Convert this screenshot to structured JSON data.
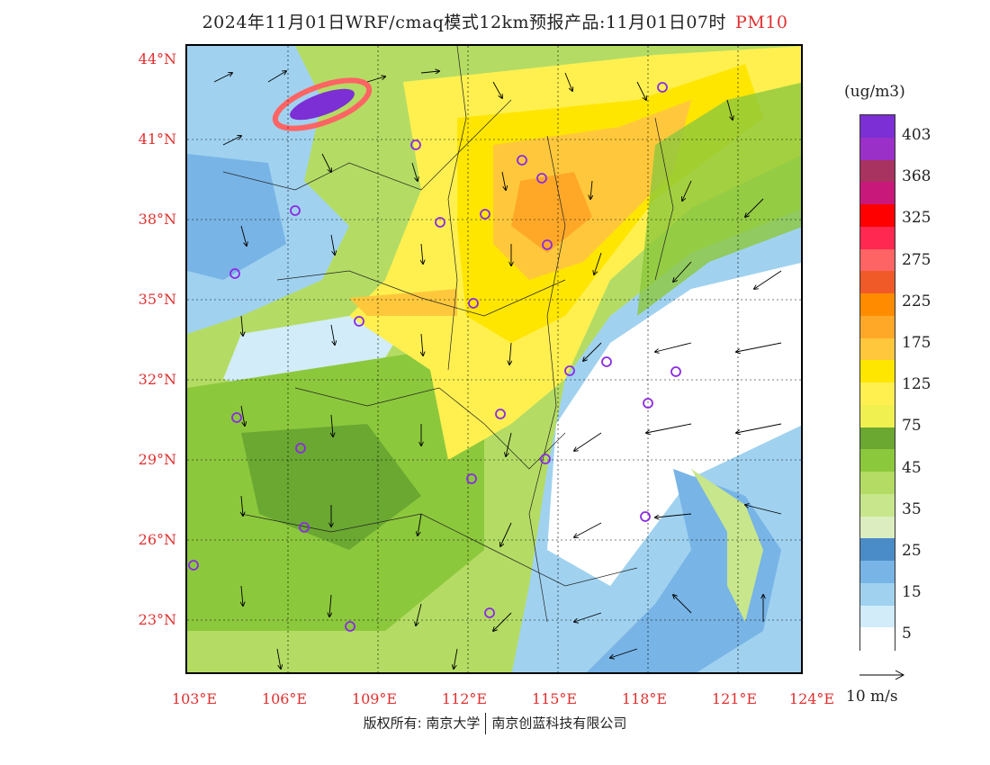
{
  "title": {
    "text": "2024年11月01日WRF/cmaq模式12km预报产品:11月01日07时",
    "product": "PM10"
  },
  "axes": {
    "lat_labels": [
      "44°N",
      "41°N",
      "38°N",
      "35°N",
      "32°N",
      "29°N",
      "26°N",
      "23°N"
    ],
    "lon_labels": [
      "103°E",
      "106°E",
      "109°E",
      "112°E",
      "115°E",
      "118°E",
      "121°E",
      "124°E"
    ]
  },
  "legend": {
    "unit": "(ug/m3)",
    "labels": [
      "403",
      "368",
      "325",
      "275",
      "225",
      "175",
      "125",
      "75",
      "45",
      "35",
      "25",
      "15",
      "5"
    ],
    "colors": [
      "#7b2fd4",
      "#9b30c8",
      "#a83260",
      "#c8187a",
      "#ff0000",
      "#ff2850",
      "#ff6464",
      "#f05a28",
      "#ff8c00",
      "#ffa828",
      "#ffc83c",
      "#ffe600",
      "#fff050",
      "#f0f050",
      "#6aa832",
      "#8cc83c",
      "#b4dc64",
      "#c8e68c",
      "#dceec0",
      "#4a8cc8",
      "#78b4e6",
      "#a0d2f0",
      "#d2ecfa",
      "#ffffff"
    ]
  },
  "wind": {
    "scale_label": "10 m/s"
  },
  "copyright": {
    "left": "版权所有: 南京大学",
    "right": "南京创蓝科技有限公司"
  }
}
